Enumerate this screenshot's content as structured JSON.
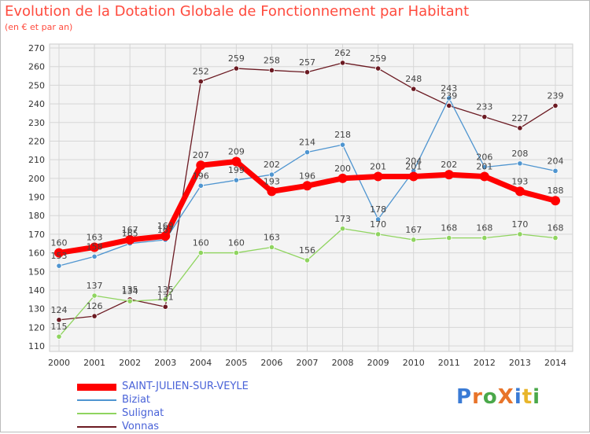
{
  "title": "Evolution de la Dotation Globale de Fonctionnement par Habitant",
  "subtitle": "(en € et par an)",
  "logo": {
    "text": "ProXiti",
    "colors": [
      "#3a7bd5",
      "#e8742a",
      "#4aa84a",
      "#e8742a",
      "#3a7bd5",
      "#e8b52a",
      "#4aa84a"
    ]
  },
  "chart_data": {
    "type": "line",
    "title": "Evolution de la Dotation Globale de Fonctionnement par Habitant",
    "xlabel": "",
    "ylabel": "(en € et par an)",
    "ylim": [
      110,
      270
    ],
    "yticks": [
      110,
      120,
      130,
      140,
      150,
      160,
      170,
      180,
      190,
      200,
      210,
      220,
      230,
      240,
      250,
      260,
      270
    ],
    "categories": [
      "2000",
      "2001",
      "2002",
      "2003",
      "2004",
      "2005",
      "2006",
      "2007",
      "2008",
      "2009",
      "2010",
      "2011",
      "2012",
      "2013",
      "2014"
    ],
    "grid": true,
    "series": [
      {
        "name": "SAINT-JULIEN-SUR-VEYLE",
        "color": "#ff0000",
        "values": [
          160,
          163,
          167,
          169,
          207,
          209,
          193,
          196,
          200,
          201,
          201,
          202,
          201,
          193,
          188
        ]
      },
      {
        "name": "Biziat",
        "color": "#4f95d0",
        "values": [
          153,
          158,
          165,
          167,
          196,
          199,
          202,
          214,
          218,
          178,
          204,
          243,
          206,
          208,
          204
        ]
      },
      {
        "name": "Sulignat",
        "color": "#8fd45f",
        "values": [
          115,
          137,
          134,
          135,
          160,
          160,
          163,
          156,
          173,
          170,
          167,
          168,
          168,
          170,
          168
        ]
      },
      {
        "name": "Vonnas",
        "color": "#6b1a22",
        "values": [
          124,
          126,
          135,
          131,
          252,
          259,
          258,
          257,
          262,
          259,
          248,
          239,
          233,
          227,
          239
        ]
      }
    ]
  }
}
